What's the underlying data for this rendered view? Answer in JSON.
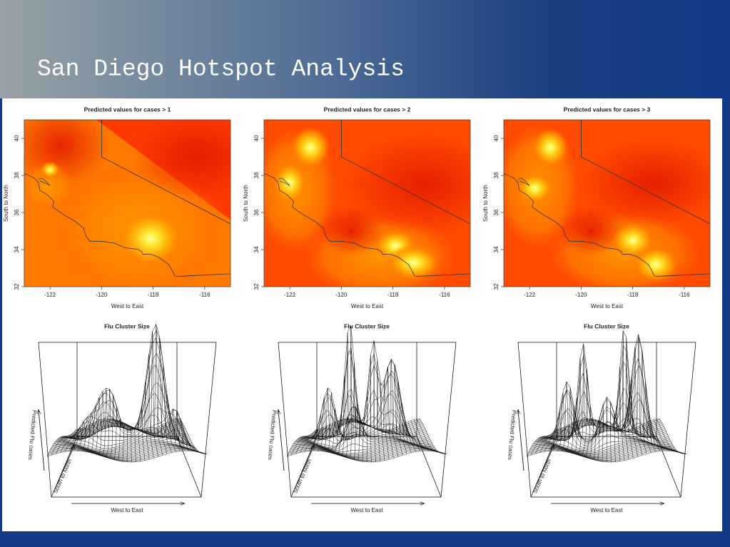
{
  "slide": {
    "title": "San Diego Hotspot Analysis"
  },
  "maps": [
    {
      "title": "Predicted values for cases > 1",
      "xlabel": "West to East",
      "ylabel": "South to North",
      "xlim": [
        -123,
        -115
      ],
      "ylim": [
        32,
        41
      ],
      "xticks": [
        -122,
        -120,
        -118,
        -116
      ],
      "yticks": [
        32,
        34,
        36,
        38,
        40
      ]
    },
    {
      "title": "Predicted values for cases > 2",
      "xlabel": "West to East",
      "ylabel": "South to North",
      "xlim": [
        -123,
        -115
      ],
      "ylim": [
        32,
        41
      ],
      "xticks": [
        -122,
        -120,
        -118,
        -116
      ],
      "yticks": [
        32,
        34,
        36,
        38,
        40
      ]
    },
    {
      "title": "Predicted values for cases > 3",
      "xlabel": "West to East",
      "ylabel": "South to North",
      "xlim": [
        -123,
        -115
      ],
      "ylim": [
        32,
        41
      ],
      "xticks": [
        -122,
        -120,
        -118,
        -116
      ],
      "yticks": [
        32,
        34,
        36,
        38,
        40
      ]
    }
  ],
  "surfaces": [
    {
      "title": "Flu Cluster Size",
      "xlabel": "West to East",
      "ylabel": "South to North",
      "zlabel": "Predicted Flu cases"
    },
    {
      "title": "Flu Cluster Size",
      "xlabel": "West to East",
      "ylabel": "South to North",
      "zlabel": "Predicted Flu cases"
    },
    {
      "title": "Flu Cluster Size",
      "xlabel": "West to East",
      "ylabel": "South to North",
      "zlabel": "Predicted Flu cases"
    }
  ]
}
